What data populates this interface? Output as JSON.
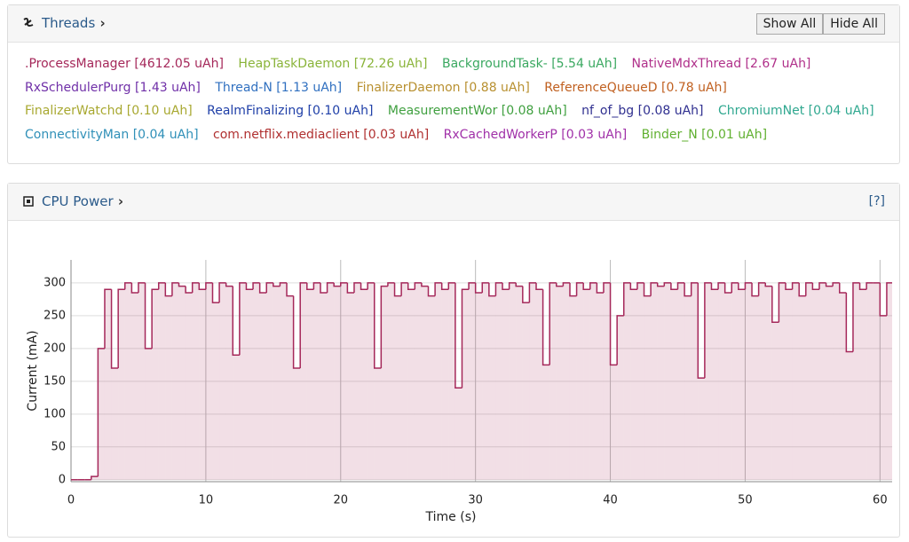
{
  "threads": {
    "title": "Threads",
    "show_all": "Show All",
    "hide_all": "Hide All",
    "items": [
      {
        "label": ".ProcessManager [4612.05 uAh]",
        "color": "#a5285a"
      },
      {
        "label": "HeapTaskDaemon [72.26 uAh]",
        "color": "#8ab43a"
      },
      {
        "label": "BackgroundTask- [5.54 uAh]",
        "color": "#3aa860"
      },
      {
        "label": "NativeMdxThread [2.67 uAh]",
        "color": "#b0308a"
      },
      {
        "label": "RxSchedulerPurg [1.43 uAh]",
        "color": "#7030a8"
      },
      {
        "label": "Thread-N [1.13 uAh]",
        "color": "#3070c0"
      },
      {
        "label": "FinalizerDaemon [0.88 uAh]",
        "color": "#b89030"
      },
      {
        "label": "ReferenceQueueD [0.78 uAh]",
        "color": "#c06020"
      },
      {
        "label": "FinalizerWatchd [0.10 uAh]",
        "color": "#a8a830"
      },
      {
        "label": "RealmFinalizing [0.10 uAh]",
        "color": "#2040a8"
      },
      {
        "label": "MeasurementWor [0.08 uAh]",
        "color": "#40a040"
      },
      {
        "label": "nf_of_bg [0.08 uAh]",
        "color": "#303090"
      },
      {
        "label": "ChromiumNet [0.04 uAh]",
        "color": "#30a890"
      },
      {
        "label": "ConnectivityMan [0.04 uAh]",
        "color": "#3090b8"
      },
      {
        "label": "com.netflix.mediaclient [0.03 uAh]",
        "color": "#b03030"
      },
      {
        "label": "RxCachedWorkerP [0.03 uAh]",
        "color": "#a030a8"
      },
      {
        "label": "Binder_N [0.01 uAh]",
        "color": "#60b030"
      }
    ]
  },
  "cpu": {
    "title": "CPU Power",
    "help": "[?]"
  },
  "chart_data": {
    "type": "step",
    "x_label": "Time (s)",
    "y_label": "Current (mA)",
    "xlim": [
      0,
      60.9
    ],
    "ylim": [
      -3,
      335
    ],
    "xticks": [
      0,
      10,
      20,
      30,
      40,
      50,
      60
    ],
    "yticks": [
      0,
      50,
      100,
      150,
      200,
      250,
      300
    ],
    "grid": true,
    "x": [
      0,
      0.5,
      1,
      1.5,
      2,
      2.5,
      3,
      3.5,
      4,
      4.5,
      5,
      5.5,
      6,
      6.5,
      7,
      7.5,
      8,
      8.5,
      9,
      9.5,
      10,
      10.5,
      11,
      11.5,
      12,
      12.5,
      13,
      13.5,
      14,
      14.5,
      15,
      15.5,
      16,
      16.5,
      17,
      17.5,
      18,
      18.5,
      19,
      19.5,
      20,
      20.5,
      21,
      21.5,
      22,
      22.5,
      23,
      23.5,
      24,
      24.5,
      25,
      25.5,
      26,
      26.5,
      27,
      27.5,
      28,
      28.5,
      29,
      29.5,
      30,
      30.5,
      31,
      31.5,
      32,
      32.5,
      33,
      33.5,
      34,
      34.5,
      35,
      35.5,
      36,
      36.5,
      37,
      37.5,
      38,
      38.5,
      39,
      39.5,
      40,
      40.5,
      41,
      41.5,
      42,
      42.5,
      43,
      43.5,
      44,
      44.5,
      45,
      45.5,
      46,
      46.5,
      47,
      47.5,
      48,
      48.5,
      49,
      49.5,
      50,
      50.5,
      51,
      51.5,
      52,
      52.5,
      53,
      53.5,
      54,
      54.5,
      55,
      55.5,
      56,
      56.5,
      57,
      57.5,
      58,
      58.5,
      59,
      59.5,
      60,
      60.5
    ],
    "series": [
      {
        "name": ".ProcessManager",
        "color": "#a5285a",
        "values": [
          0,
          0,
          0,
          5,
          200,
          290,
          170,
          290,
          300,
          285,
          300,
          200,
          290,
          300,
          280,
          300,
          295,
          285,
          300,
          290,
          300,
          270,
          300,
          295,
          190,
          300,
          290,
          300,
          285,
          300,
          295,
          300,
          280,
          170,
          300,
          290,
          300,
          285,
          300,
          295,
          300,
          285,
          300,
          290,
          300,
          170,
          295,
          300,
          280,
          300,
          290,
          300,
          295,
          280,
          300,
          290,
          300,
          140,
          290,
          300,
          285,
          300,
          280,
          300,
          290,
          300,
          295,
          270,
          300,
          290,
          175,
          300,
          295,
          300,
          280,
          300,
          290,
          300,
          285,
          300,
          175,
          250,
          300,
          290,
          300,
          280,
          300,
          295,
          300,
          290,
          300,
          280,
          300,
          155,
          300,
          290,
          300,
          285,
          300,
          290,
          300,
          280,
          300,
          295,
          240,
          300,
          290,
          300,
          280,
          300,
          290,
          300,
          295,
          300,
          285,
          195,
          300,
          290,
          300,
          300,
          250,
          300
        ]
      }
    ]
  }
}
